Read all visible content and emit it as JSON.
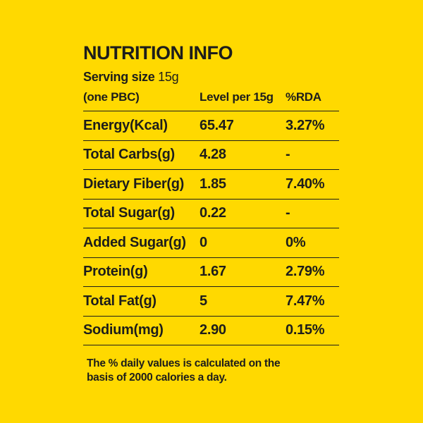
{
  "label": {
    "bg_color": "#FFD900",
    "text_color": "#1D1D1B",
    "title": "NUTRITION INFO",
    "serving": {
      "label": "Serving size",
      "value": "15g"
    },
    "columns": {
      "col1": "(one PBC)",
      "col2": "Level per 15g",
      "col3": "%RDA"
    },
    "rows": [
      {
        "name": "Energy(Kcal)",
        "level": "65.47",
        "rda": "3.27%"
      },
      {
        "name": "Total Carbs(g)",
        "level": "4.28",
        "rda": "-"
      },
      {
        "name": "Dietary Fiber(g)",
        "level": "1.85",
        "rda": "7.40%"
      },
      {
        "name": "Total Sugar(g)",
        "level": "0.22",
        "rda": "-"
      },
      {
        "name": "Added Sugar(g)",
        "level": "0",
        "rda": "0%"
      },
      {
        "name": "Protein(g)",
        "level": "1.67",
        "rda": "2.79%"
      },
      {
        "name": "Total Fat(g)",
        "level": "5",
        "rda": "7.47%"
      },
      {
        "name": "Sodium(mg)",
        "level": "2.90",
        "rda": "0.15%"
      }
    ],
    "footnote_line1": "The % daily values is calculated on the",
    "footnote_line2": "basis of 2000 calories a day."
  }
}
